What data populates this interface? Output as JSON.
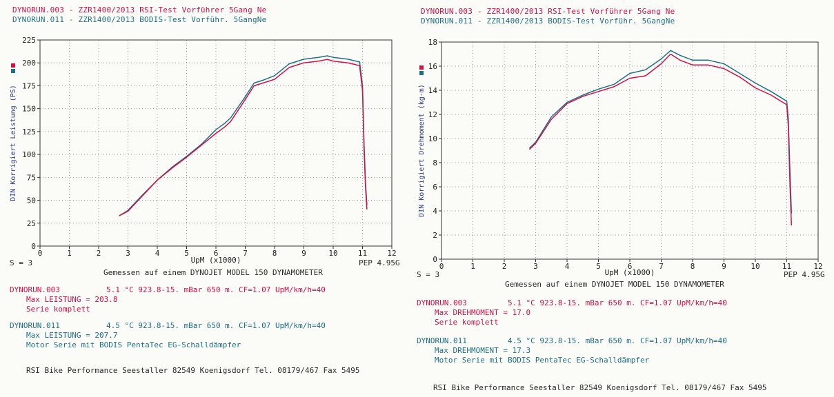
{
  "colors": {
    "red": "#d01046",
    "teal": "#1f6f86",
    "grid": "#9a9aaa",
    "axis": "#333333"
  },
  "header": {
    "run1": "DYNORUN.003 - ZZR1400/2013 RSI-Test Vorführer 5Gang Ne",
    "run2": "DYNORUN.011 - ZZR1400/2013 BODIS-Test Vorführ. 5GangNe"
  },
  "footer": {
    "s_label": "S = 3",
    "pep": "PEP 4.95G",
    "gemessen": "Gemessen auf einem DYNOJET MODEL 150 DYNAMOMETER",
    "run1_name": "DYNORUN.003",
    "run1_cond": "5.1 °C   923.8-15. mBar   650 m.   CF=1.07   UpM/km/h=40",
    "run1_serie": "Serie komplett",
    "run2_name": "DYNORUN.011",
    "run2_cond": "4.5 °C   923.8-15. mBar   650 m.   CF=1.07   UpM/km/h=40",
    "run2_desc": "Motor Serie mit BODIS PentaTec EG-Schalldämpfer",
    "company": "RSI Bike Performance Seestaller   82549 Koenigsdorf   Tel. 08179/467 Fax 5495"
  },
  "chart_data": [
    {
      "type": "line",
      "ylabel": "DIN Korrigiert Leistung (PS)",
      "xlabel": "UpM (x1000)",
      "xlim": [
        0,
        12
      ],
      "ylim": [
        0,
        225
      ],
      "xticks": [
        0,
        1,
        2,
        3,
        4,
        5,
        6,
        7,
        8,
        9,
        10,
        11,
        12
      ],
      "yticks": [
        0,
        25,
        50,
        75,
        100,
        125,
        150,
        175,
        200,
        225
      ],
      "grid": true,
      "max_label": "Max LEISTUNG",
      "series": [
        {
          "name": "DYNORUN.003",
          "color": "#d01046",
          "max": "203.8",
          "x": [
            2.7,
            3.0,
            3.5,
            4.0,
            4.5,
            5.0,
            5.5,
            6.0,
            6.3,
            6.5,
            7.0,
            7.3,
            7.6,
            8.0,
            8.5,
            9.0,
            9.5,
            9.8,
            10.0,
            10.5,
            10.9,
            11.0,
            11.05,
            11.1,
            11.15
          ],
          "y": [
            33,
            38,
            55,
            72,
            85,
            97,
            110,
            123,
            130,
            136,
            160,
            175,
            178,
            182,
            195,
            200,
            202,
            203.8,
            202,
            200,
            197,
            170,
            110,
            65,
            40
          ]
        },
        {
          "name": "DYNORUN.011",
          "color": "#1f6f86",
          "max": "207.7",
          "x": [
            2.7,
            3.0,
            3.5,
            4.0,
            4.5,
            5.0,
            5.5,
            6.0,
            6.3,
            6.5,
            7.0,
            7.3,
            7.6,
            8.0,
            8.5,
            9.0,
            9.5,
            9.8,
            10.0,
            10.5,
            10.9,
            11.0,
            11.05,
            11.1,
            11.15
          ],
          "y": [
            33,
            39,
            56,
            72,
            86,
            98,
            111,
            127,
            134,
            140,
            163,
            178,
            181,
            186,
            199,
            204,
            206,
            207.7,
            206,
            204,
            201,
            175,
            115,
            70,
            45
          ]
        }
      ]
    },
    {
      "type": "line",
      "ylabel": "DIN Korrigiert Drehmoment (kg-m)",
      "xlabel": "UpM (x1000)",
      "xlim": [
        0,
        12
      ],
      "ylim": [
        0,
        18
      ],
      "xticks": [
        0,
        1,
        2,
        3,
        4,
        5,
        6,
        7,
        8,
        9,
        10,
        11,
        12
      ],
      "yticks": [
        0,
        2,
        4,
        6,
        8,
        10,
        12,
        14,
        16,
        18
      ],
      "grid": true,
      "max_label": "Max DREHMOMENT",
      "series": [
        {
          "name": "DYNORUN.003",
          "color": "#d01046",
          "max": "17.0",
          "x": [
            2.8,
            3.0,
            3.5,
            4.0,
            4.5,
            5.0,
            5.5,
            6.0,
            6.5,
            7.0,
            7.3,
            7.6,
            8.0,
            8.5,
            9.0,
            9.5,
            10.0,
            10.5,
            11.0,
            11.05,
            11.1,
            11.15
          ],
          "y": [
            9.1,
            9.6,
            11.6,
            12.9,
            13.5,
            13.9,
            14.3,
            15.0,
            15.2,
            16.2,
            17.0,
            16.5,
            16.1,
            16.1,
            15.8,
            15.1,
            14.2,
            13.6,
            12.8,
            11.0,
            6.5,
            2.8
          ]
        },
        {
          "name": "DYNORUN.011",
          "color": "#1f6f86",
          "max": "17.3",
          "x": [
            2.8,
            3.0,
            3.5,
            4.0,
            4.5,
            5.0,
            5.5,
            6.0,
            6.5,
            7.0,
            7.3,
            7.6,
            8.0,
            8.5,
            9.0,
            9.5,
            10.0,
            10.5,
            11.0,
            11.05,
            11.1,
            11.15
          ],
          "y": [
            9.2,
            9.7,
            11.8,
            13.0,
            13.6,
            14.1,
            14.5,
            15.4,
            15.7,
            16.6,
            17.3,
            16.9,
            16.5,
            16.5,
            16.2,
            15.4,
            14.6,
            13.9,
            13.1,
            11.6,
            7.5,
            3.8
          ]
        }
      ]
    }
  ]
}
